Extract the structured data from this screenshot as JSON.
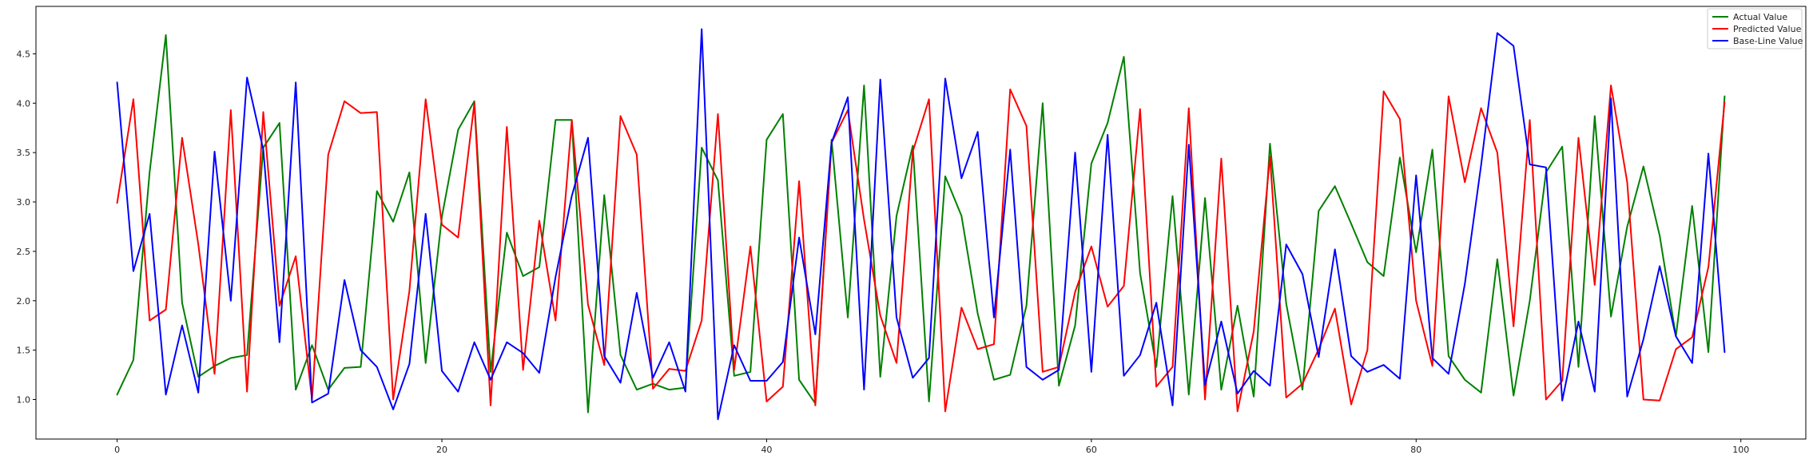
{
  "chart_data": {
    "type": "line",
    "title": "",
    "xlabel": "",
    "ylabel": "",
    "xlim": [
      -5,
      104
    ],
    "ylim": [
      0.6,
      4.98
    ],
    "xticks": [
      0,
      20,
      40,
      60,
      80,
      100
    ],
    "yticks": [
      1.0,
      1.5,
      2.0,
      2.5,
      3.0,
      3.5,
      4.0,
      4.5
    ],
    "grid": false,
    "legend_position": "top-right",
    "x": [
      0,
      1,
      2,
      3,
      4,
      5,
      6,
      7,
      8,
      9,
      10,
      11,
      12,
      13,
      14,
      15,
      16,
      17,
      18,
      19,
      20,
      21,
      22,
      23,
      24,
      25,
      26,
      27,
      28,
      29,
      30,
      31,
      32,
      33,
      34,
      35,
      36,
      37,
      38,
      39,
      40,
      41,
      42,
      43,
      44,
      45,
      46,
      47,
      48,
      49,
      50,
      51,
      52,
      53,
      54,
      55,
      56,
      57,
      58,
      59,
      60,
      61,
      62,
      63,
      64,
      65,
      66,
      67,
      68,
      69,
      70,
      71,
      72,
      73,
      74,
      75,
      76,
      77,
      78,
      79,
      80,
      81,
      82,
      83,
      84,
      85,
      86,
      87,
      88,
      89,
      90,
      91,
      92,
      93,
      94,
      95,
      96,
      97,
      98,
      99
    ],
    "series": [
      {
        "name": "Actual Value",
        "color": "#008000",
        "values": [
          1.05,
          1.4,
          3.3,
          4.69,
          1.98,
          1.23,
          1.34,
          1.42,
          1.45,
          3.55,
          3.8,
          1.1,
          1.55,
          1.1,
          1.32,
          1.33,
          3.11,
          2.8,
          3.3,
          1.37,
          2.85,
          3.73,
          4.02,
          1.28,
          2.69,
          2.25,
          2.34,
          3.83,
          3.83,
          0.87,
          3.07,
          1.45,
          1.1,
          1.16,
          1.1,
          1.12,
          3.55,
          3.22,
          1.24,
          1.28,
          3.63,
          3.89,
          1.2,
          0.96,
          3.63,
          1.83,
          4.18,
          1.23,
          2.86,
          3.57,
          0.98,
          3.26,
          2.86,
          1.87,
          1.2,
          1.25,
          1.95,
          4.0,
          1.14,
          1.75,
          3.39,
          3.8,
          4.47,
          2.28,
          1.33,
          3.06,
          1.05,
          3.04,
          1.1,
          1.95,
          1.03,
          3.59,
          1.97,
          1.1,
          2.91,
          3.16,
          2.78,
          2.39,
          2.25,
          3.45,
          2.49,
          3.53,
          1.44,
          1.2,
          1.07,
          2.42,
          1.04,
          2.0,
          3.3,
          3.56,
          1.33,
          3.87,
          1.84,
          2.75,
          3.36,
          2.66,
          1.64,
          2.96,
          1.48,
          4.07
        ]
      },
      {
        "name": "Predicted Value",
        "color": "#ff0000",
        "values": [
          2.99,
          4.04,
          1.8,
          1.91,
          3.65,
          2.57,
          1.26,
          3.93,
          1.08,
          3.91,
          1.95,
          2.45,
          1.0,
          3.48,
          4.02,
          3.9,
          3.91,
          1.0,
          2.1,
          4.04,
          2.77,
          2.64,
          4.0,
          0.94,
          3.76,
          1.3,
          2.81,
          1.8,
          3.83,
          1.96,
          1.35,
          3.87,
          3.48,
          1.11,
          1.31,
          1.29,
          1.8,
          3.89,
          1.3,
          2.55,
          0.98,
          1.13,
          3.21,
          0.94,
          3.6,
          3.93,
          2.82,
          1.85,
          1.37,
          3.51,
          4.04,
          0.88,
          1.93,
          1.51,
          1.56,
          4.14,
          3.77,
          1.28,
          1.33,
          2.09,
          2.55,
          1.94,
          2.15,
          3.94,
          1.13,
          1.33,
          3.95,
          1.0,
          3.44,
          0.88,
          1.69,
          3.46,
          1.02,
          1.16,
          1.51,
          1.92,
          0.95,
          1.5,
          4.12,
          3.84,
          2.0,
          1.34,
          4.07,
          3.2,
          3.95,
          3.5,
          1.74,
          3.83,
          1.0,
          1.19,
          3.65,
          2.16,
          4.18,
          3.2,
          1.0,
          0.99,
          1.51,
          1.63,
          2.34,
          4.01
        ]
      },
      {
        "name": "Base-Line Value",
        "color": "#0000ff",
        "values": [
          4.21,
          2.3,
          2.88,
          1.05,
          1.75,
          1.07,
          3.51,
          2.0,
          4.26,
          3.53,
          1.58,
          4.21,
          0.97,
          1.06,
          2.21,
          1.5,
          1.33,
          0.9,
          1.36,
          2.88,
          1.29,
          1.08,
          1.58,
          1.2,
          1.58,
          1.47,
          1.27,
          2.24,
          3.06,
          3.65,
          1.44,
          1.17,
          2.08,
          1.22,
          1.58,
          1.08,
          4.75,
          0.8,
          1.55,
          1.19,
          1.19,
          1.38,
          2.64,
          1.66,
          3.6,
          4.06,
          1.1,
          4.24,
          1.83,
          1.22,
          1.42,
          4.25,
          3.24,
          3.71,
          1.83,
          3.53,
          1.33,
          1.2,
          1.3,
          3.5,
          1.28,
          3.68,
          1.24,
          1.45,
          1.98,
          0.94,
          3.58,
          1.15,
          1.79,
          1.06,
          1.29,
          1.14,
          2.57,
          2.27,
          1.43,
          2.52,
          1.44,
          1.28,
          1.35,
          1.21,
          3.27,
          1.42,
          1.26,
          2.17,
          3.37,
          4.71,
          4.58,
          3.38,
          3.35,
          0.99,
          1.79,
          1.08,
          4.05,
          1.03,
          1.61,
          2.35,
          1.64,
          1.37,
          3.49,
          1.48
        ]
      }
    ]
  }
}
